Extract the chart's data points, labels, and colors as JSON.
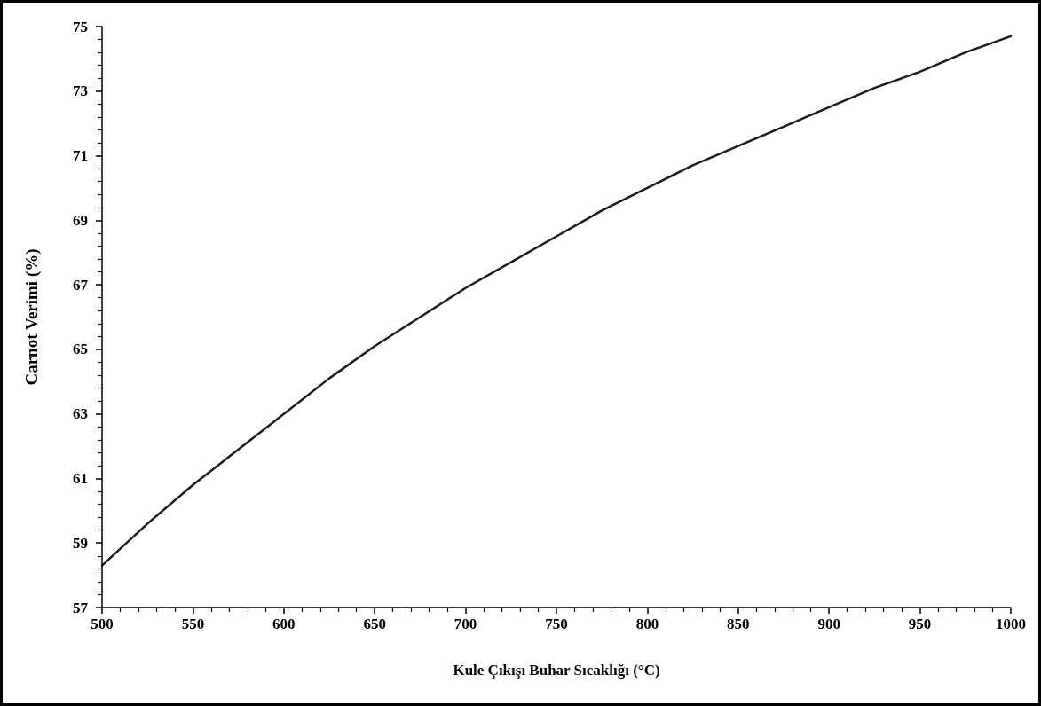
{
  "chart_data": {
    "type": "line",
    "xlabel": "Kule Çıkışı Buhar Sıcaklığı (°C)",
    "ylabel": "Carnot Verimi (%)",
    "x": [
      500,
      525,
      550,
      575,
      600,
      625,
      650,
      675,
      700,
      725,
      750,
      775,
      800,
      825,
      850,
      875,
      900,
      925,
      950,
      975,
      1000
    ],
    "series": [
      {
        "color": "#1c1c12",
        "values": [
          58.3,
          59.6,
          60.8,
          61.9,
          63.0,
          64.1,
          65.1,
          66.0,
          66.9,
          67.7,
          68.5,
          69.3,
          70.0,
          70.7,
          71.3,
          71.9,
          72.5,
          73.1,
          73.6,
          74.2,
          74.7
        ]
      }
    ],
    "xlim": [
      500,
      1000
    ],
    "xticks": [
      500,
      550,
      600,
      650,
      700,
      750,
      800,
      850,
      900,
      950,
      1000
    ],
    "ylim": [
      57,
      75
    ],
    "yticks": [
      57,
      59,
      61,
      63,
      65,
      67,
      69,
      71,
      73,
      75
    ],
    "grid": false,
    "marker": "none",
    "line_style": "solid"
  }
}
